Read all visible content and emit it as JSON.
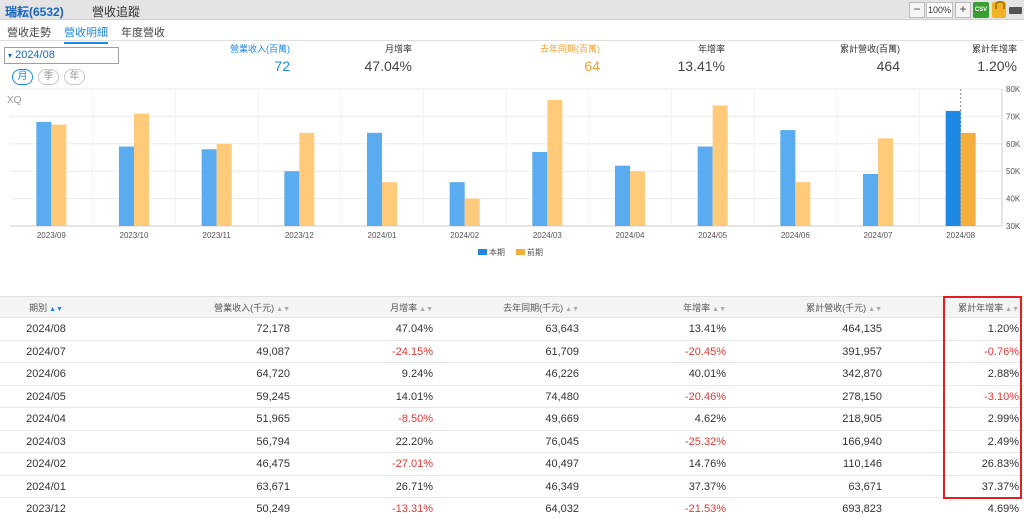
{
  "titlebar": {
    "company": "瑞耘(6532)",
    "section": "營收追蹤",
    "zoom": "100%",
    "zoom_out": "−",
    "zoom_in": "+",
    "csv_label": "CSV"
  },
  "tabs": [
    {
      "label": "營收走勢",
      "active": false
    },
    {
      "label": "營收明細",
      "active": true
    },
    {
      "label": "年度營收",
      "active": false
    }
  ],
  "controls": {
    "month": "2024/08",
    "period_buttons": [
      {
        "label": "月",
        "active": true
      },
      {
        "label": "季",
        "active": false
      },
      {
        "label": "年",
        "active": false
      }
    ]
  },
  "summary": [
    {
      "label": "營業收入(百萬)",
      "value": "72",
      "color": "blue"
    },
    {
      "label": "月增率",
      "value": "47.04%",
      "color": "gray"
    },
    {
      "label": "去年同期(百萬)",
      "value": "64",
      "color": "orange"
    },
    {
      "label": "年增率",
      "value": "13.41%",
      "color": "gray"
    },
    {
      "label": "累計營收(百萬)",
      "value": "464",
      "color": "gray"
    },
    {
      "label": "累計年增率",
      "value": "1.20%",
      "color": "gray"
    }
  ],
  "xq_label": "XQ",
  "chart_data": {
    "type": "bar",
    "categories": [
      "2023/09",
      "2023/10",
      "2023/11",
      "2023/12",
      "2024/01",
      "2024/02",
      "2024/03",
      "2024/04",
      "2024/05",
      "2024/06",
      "2024/07",
      "2024/08"
    ],
    "series": [
      {
        "name": "本期",
        "color": "#5aabf0",
        "values": [
          68,
          59,
          58,
          50,
          64,
          46,
          57,
          52,
          59,
          65,
          49,
          72
        ]
      },
      {
        "name": "前期",
        "color": "#ffcb7a",
        "values": [
          67,
          71,
          60,
          64,
          46,
          40,
          76,
          50,
          74,
          46,
          62,
          64
        ]
      }
    ],
    "highlight_color": "#1e88e5",
    "highlight_prev_color": "#f5ad3c",
    "y_ticks": [
      "30K",
      "40K",
      "50K",
      "60K",
      "70K",
      "80K"
    ],
    "y_tick_values": [
      30,
      40,
      50,
      60,
      70,
      80
    ],
    "ylim": [
      30,
      80
    ],
    "grid": true,
    "legend_position": "bottom"
  },
  "table": {
    "headers": [
      "期別",
      "營業收入(千元)",
      "月增率",
      "去年同期(千元)",
      "年增率",
      "累計營收(千元)",
      "累計年增率"
    ],
    "rows": [
      [
        "2024/08",
        "72,178",
        "47.04%",
        "63,643",
        "13.41%",
        "464,135",
        "1.20%"
      ],
      [
        "2024/07",
        "49,087",
        "-24.15%",
        "61,709",
        "-20.45%",
        "391,957",
        "-0.76%"
      ],
      [
        "2024/06",
        "64,720",
        "9.24%",
        "46,226",
        "40.01%",
        "342,870",
        "2.88%"
      ],
      [
        "2024/05",
        "59,245",
        "14.01%",
        "74,480",
        "-20.46%",
        "278,150",
        "-3.10%"
      ],
      [
        "2024/04",
        "51,965",
        "-8.50%",
        "49,669",
        "4.62%",
        "218,905",
        "2.99%"
      ],
      [
        "2024/03",
        "56,794",
        "22.20%",
        "76,045",
        "-25.32%",
        "166,940",
        "2.49%"
      ],
      [
        "2024/02",
        "46,475",
        "-27.01%",
        "40,497",
        "14.76%",
        "110,146",
        "26.83%"
      ],
      [
        "2024/01",
        "63,671",
        "26.71%",
        "46,349",
        "37.37%",
        "63,671",
        "37.37%"
      ],
      [
        "2023/12",
        "50,249",
        "-13.31%",
        "64,032",
        "-21.53%",
        "693,823",
        "4.69%"
      ]
    ]
  }
}
